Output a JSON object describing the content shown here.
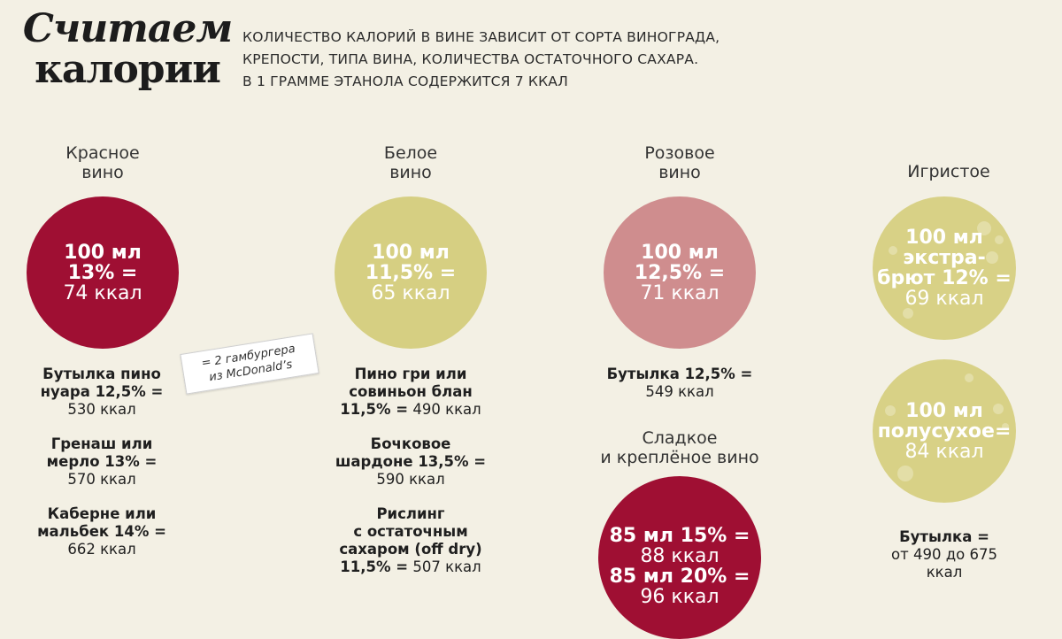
{
  "title": {
    "line1": "Считаем",
    "line2": "калории"
  },
  "intro": [
    "Количество калорий в вине зависит от сорта винограда,",
    "крепости, типа вина, количества остаточного сахара.",
    "В 1 грамме этанола содержится 7 ккал"
  ],
  "red": {
    "label1": "Красное",
    "label2": "вино",
    "c1": "100 мл",
    "c2": "13% =",
    "c3": "74 ккал",
    "items": [
      {
        "b1": "Бутылка пино",
        "b2": "нуара 12,5% =",
        "v": "530 ккал"
      },
      {
        "b1": "Гренаш или",
        "b2": "мерло 13% =",
        "v": "570 ккал"
      },
      {
        "b1": "Каберне или",
        "b2": "мальбек 14% =",
        "v": "662 ккал"
      }
    ]
  },
  "note": {
    "line1": "= 2 гамбургера",
    "line2": "из McDonald’s"
  },
  "white": {
    "label1": "Белое",
    "label2": "вино",
    "c1": "100 мл",
    "c2": "11,5% =",
    "c3": "65 ккал",
    "item1": {
      "b1": "Пино гри или",
      "b2": "совиньон блан",
      "b3": "11,5% =",
      "v": "490 ккал"
    },
    "item2": {
      "b1": "Бочковое",
      "b2": "шардоне 13,5% =",
      "v": "590 ккал"
    },
    "item3": {
      "b1": "Рислинг",
      "b2": "с остаточным",
      "b3": "сахаром (off dry)",
      "b4": "11,5% =",
      "v": "507 ккал"
    }
  },
  "rose": {
    "label1": "Розовое",
    "label2": "вино",
    "c1": "100 мл",
    "c2": "12,5% =",
    "c3": "71 ккал",
    "item": {
      "b1": "Бутылка 12,5% =",
      "v": "549 ккал"
    }
  },
  "sweet": {
    "label1": "Сладкое",
    "label2": "и креплёное вино",
    "c1": "85 мл 15% =",
    "c2": "88 ккал",
    "c3": "85 мл 20% =",
    "c4": "96 ккал"
  },
  "sparkling": {
    "label": "Игристое",
    "a1": "100 мл",
    "a2": "экстра-",
    "a3": "брют 12% =",
    "a4": "69 ккал",
    "b1": "100 мл",
    "b2": "полусухое=",
    "b3": "84 ккал",
    "item": {
      "b1": "Бутылка =",
      "v1": "от 490 до 675",
      "v2": "ккал"
    }
  },
  "colors": {
    "red": "#9f0f33",
    "yellow": "#d6cf82",
    "pink": "#cf8d8e",
    "background": "#f3f0e4"
  }
}
